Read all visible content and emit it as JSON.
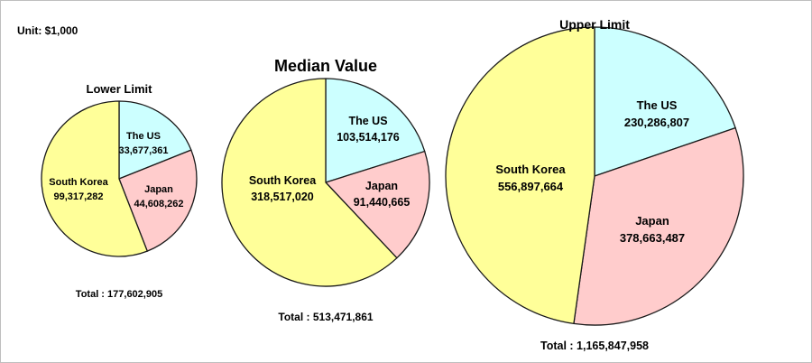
{
  "unit_label": "Unit: $1,000",
  "colors": {
    "The US": "#ccffff",
    "Japan": "#ffcccc",
    "South Korea": "#ffff99"
  },
  "chart_data": [
    {
      "type": "pie",
      "title": "Lower Limit",
      "slices": [
        {
          "label": "The US",
          "value": 33677361,
          "value_label": "33,677,361"
        },
        {
          "label": "Japan",
          "value": 44608262,
          "value_label": "44,608,262"
        },
        {
          "label": "South Korea",
          "value": 99317282,
          "value_label": "99,317,282"
        }
      ],
      "total_text": "Total : 177,602,905"
    },
    {
      "type": "pie",
      "title": "Median Value",
      "slices": [
        {
          "label": "The US",
          "value": 103514176,
          "value_label": "103,514,176"
        },
        {
          "label": "Japan",
          "value": 91440665,
          "value_label": "91,440,665"
        },
        {
          "label": "South Korea",
          "value": 318517020,
          "value_label": "318,517,020"
        }
      ],
      "total_text": "Total : 513,471,861"
    },
    {
      "type": "pie",
      "title": "Upper Limit",
      "slices": [
        {
          "label": "The US",
          "value": 230286807,
          "value_label": "230,286,807"
        },
        {
          "label": "Japan",
          "value": 378663487,
          "value_label": "378,663,487"
        },
        {
          "label": "South Korea",
          "value": 556897664,
          "value_label": "556,897,664"
        }
      ],
      "total_text": "Total : 1,165,847,958"
    }
  ]
}
